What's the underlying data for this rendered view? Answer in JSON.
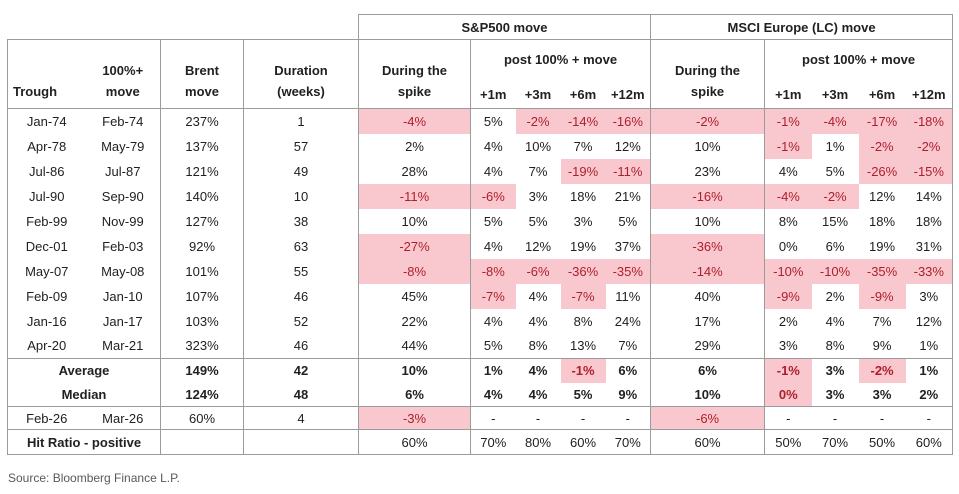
{
  "chart_data": {
    "type": "table",
    "groups": [
      "S&P500 move",
      "MSCI Europe (LC) move"
    ],
    "header": {
      "trough": "Trough",
      "peak": "100%+\nmove",
      "brent": "Brent\nmove",
      "duration": "Duration\n(weeks)",
      "during_spike": "During the\nspike",
      "post_move": "post 100% + move",
      "months": [
        "+1m",
        "+3m",
        "+6m",
        "+12m"
      ]
    },
    "rows": [
      {
        "type": "data",
        "trough": "Jan-74",
        "peak": "Feb-74",
        "brent": "237%",
        "dur": "1",
        "sp": [
          {
            "v": "-4%",
            "h": true
          },
          {
            "v": "5%"
          },
          {
            "v": "-2%",
            "h": true
          },
          {
            "v": "-14%",
            "h": true
          },
          {
            "v": "-16%",
            "h": true
          }
        ],
        "ms": [
          {
            "v": "-2%",
            "h": true
          },
          {
            "v": "-1%",
            "h": true
          },
          {
            "v": "-4%",
            "h": true
          },
          {
            "v": "-17%",
            "h": true
          },
          {
            "v": "-18%",
            "h": true
          }
        ]
      },
      {
        "type": "data",
        "trough": "Apr-78",
        "peak": "May-79",
        "brent": "137%",
        "dur": "57",
        "sp": [
          {
            "v": "2%"
          },
          {
            "v": "4%"
          },
          {
            "v": "10%"
          },
          {
            "v": "7%"
          },
          {
            "v": "12%"
          }
        ],
        "ms": [
          {
            "v": "10%"
          },
          {
            "v": "-1%",
            "h": true
          },
          {
            "v": "1%"
          },
          {
            "v": "-2%",
            "h": true
          },
          {
            "v": "-2%",
            "h": true
          }
        ]
      },
      {
        "type": "data",
        "trough": "Jul-86",
        "peak": "Jul-87",
        "brent": "121%",
        "dur": "49",
        "sp": [
          {
            "v": "28%"
          },
          {
            "v": "4%"
          },
          {
            "v": "7%"
          },
          {
            "v": "-19%",
            "h": true
          },
          {
            "v": "-11%",
            "h": true
          }
        ],
        "ms": [
          {
            "v": "23%"
          },
          {
            "v": "4%"
          },
          {
            "v": "5%"
          },
          {
            "v": "-26%",
            "h": true
          },
          {
            "v": "-15%",
            "h": true
          }
        ]
      },
      {
        "type": "data",
        "trough": "Jul-90",
        "peak": "Sep-90",
        "brent": "140%",
        "dur": "10",
        "sp": [
          {
            "v": "-11%",
            "h": true
          },
          {
            "v": "-6%",
            "h": true
          },
          {
            "v": "3%"
          },
          {
            "v": "18%"
          },
          {
            "v": "21%"
          }
        ],
        "ms": [
          {
            "v": "-16%",
            "h": true
          },
          {
            "v": "-4%",
            "h": true
          },
          {
            "v": "-2%",
            "h": true
          },
          {
            "v": "12%"
          },
          {
            "v": "14%"
          }
        ]
      },
      {
        "type": "data",
        "trough": "Feb-99",
        "peak": "Nov-99",
        "brent": "127%",
        "dur": "38",
        "sp": [
          {
            "v": "10%"
          },
          {
            "v": "5%"
          },
          {
            "v": "5%"
          },
          {
            "v": "3%"
          },
          {
            "v": "5%"
          }
        ],
        "ms": [
          {
            "v": "10%"
          },
          {
            "v": "8%"
          },
          {
            "v": "15%"
          },
          {
            "v": "18%"
          },
          {
            "v": "18%"
          }
        ]
      },
      {
        "type": "data",
        "trough": "Dec-01",
        "peak": "Feb-03",
        "brent": "92%",
        "dur": "63",
        "sp": [
          {
            "v": "-27%",
            "h": true
          },
          {
            "v": "4%"
          },
          {
            "v": "12%"
          },
          {
            "v": "19%"
          },
          {
            "v": "37%"
          }
        ],
        "ms": [
          {
            "v": "-36%",
            "h": true
          },
          {
            "v": "0%"
          },
          {
            "v": "6%"
          },
          {
            "v": "19%"
          },
          {
            "v": "31%"
          }
        ]
      },
      {
        "type": "data",
        "trough": "May-07",
        "peak": "May-08",
        "brent": "101%",
        "dur": "55",
        "sp": [
          {
            "v": "-8%",
            "h": true
          },
          {
            "v": "-8%",
            "h": true
          },
          {
            "v": "-6%",
            "h": true
          },
          {
            "v": "-36%",
            "h": true
          },
          {
            "v": "-35%",
            "h": true
          }
        ],
        "ms": [
          {
            "v": "-14%",
            "h": true
          },
          {
            "v": "-10%",
            "h": true
          },
          {
            "v": "-10%",
            "h": true
          },
          {
            "v": "-35%",
            "h": true
          },
          {
            "v": "-33%",
            "h": true
          }
        ]
      },
      {
        "type": "data",
        "trough": "Feb-09",
        "peak": "Jan-10",
        "brent": "107%",
        "dur": "46",
        "sp": [
          {
            "v": "45%"
          },
          {
            "v": "-7%",
            "h": true
          },
          {
            "v": "4%"
          },
          {
            "v": "-7%",
            "h": true
          },
          {
            "v": "11%"
          }
        ],
        "ms": [
          {
            "v": "40%"
          },
          {
            "v": "-9%",
            "h": true
          },
          {
            "v": "2%"
          },
          {
            "v": "-9%",
            "h": true
          },
          {
            "v": "3%"
          }
        ]
      },
      {
        "type": "data",
        "trough": "Jan-16",
        "peak": "Jan-17",
        "brent": "103%",
        "dur": "52",
        "sp": [
          {
            "v": "22%"
          },
          {
            "v": "4%"
          },
          {
            "v": "4%"
          },
          {
            "v": "8%"
          },
          {
            "v": "24%"
          }
        ],
        "ms": [
          {
            "v": "17%"
          },
          {
            "v": "2%"
          },
          {
            "v": "4%"
          },
          {
            "v": "7%"
          },
          {
            "v": "12%"
          }
        ]
      },
      {
        "type": "data",
        "trough": "Apr-20",
        "peak": "Mar-21",
        "brent": "323%",
        "dur": "46",
        "sp": [
          {
            "v": "44%"
          },
          {
            "v": "5%"
          },
          {
            "v": "8%"
          },
          {
            "v": "13%"
          },
          {
            "v": "7%"
          }
        ],
        "ms": [
          {
            "v": "29%"
          },
          {
            "v": "3%"
          },
          {
            "v": "8%"
          },
          {
            "v": "9%"
          },
          {
            "v": "1%"
          }
        ]
      },
      {
        "type": "avg",
        "label": "Average",
        "brent": "149%",
        "dur": "42",
        "sp": [
          {
            "v": "10%"
          },
          {
            "v": "1%"
          },
          {
            "v": "4%"
          },
          {
            "v": "-1%",
            "h": true
          },
          {
            "v": "6%"
          }
        ],
        "ms": [
          {
            "v": "6%"
          },
          {
            "v": "-1%",
            "h": true
          },
          {
            "v": "3%"
          },
          {
            "v": "-2%",
            "h": true
          },
          {
            "v": "1%"
          }
        ]
      },
      {
        "type": "median",
        "label": "Median",
        "brent": "124%",
        "dur": "48",
        "sp": [
          {
            "v": "6%"
          },
          {
            "v": "4%"
          },
          {
            "v": "4%"
          },
          {
            "v": "5%"
          },
          {
            "v": "9%"
          }
        ],
        "ms": [
          {
            "v": "10%"
          },
          {
            "v": "0%",
            "h": true
          },
          {
            "v": "3%"
          },
          {
            "v": "3%"
          },
          {
            "v": "2%"
          }
        ]
      },
      {
        "type": "current",
        "trough": "Feb-26",
        "peak": "Mar-26",
        "brent": "60%",
        "dur": "4",
        "sp": [
          {
            "v": "-3%",
            "h": true
          },
          {
            "v": "-"
          },
          {
            "v": "-"
          },
          {
            "v": "-"
          },
          {
            "v": "-"
          }
        ],
        "ms": [
          {
            "v": "-6%",
            "h": true
          },
          {
            "v": "-"
          },
          {
            "v": "-"
          },
          {
            "v": "-"
          },
          {
            "v": "-"
          }
        ]
      },
      {
        "type": "hit",
        "label": "Hit Ratio - positive",
        "brent": "",
        "dur": "",
        "sp": [
          {
            "v": "60%"
          },
          {
            "v": "70%"
          },
          {
            "v": "80%"
          },
          {
            "v": "60%"
          },
          {
            "v": "70%"
          }
        ],
        "ms": [
          {
            "v": "60%"
          },
          {
            "v": "50%"
          },
          {
            "v": "70%"
          },
          {
            "v": "50%"
          },
          {
            "v": "60%"
          }
        ]
      }
    ],
    "source": "Source: Bloomberg Finance L.P.",
    "colors": {
      "highlight_pink": "#f9c8ce",
      "negative_red": "#ae1e2c",
      "border_gray": "#9b9b9b",
      "text": "#212121",
      "source_gray": "#595959"
    }
  }
}
